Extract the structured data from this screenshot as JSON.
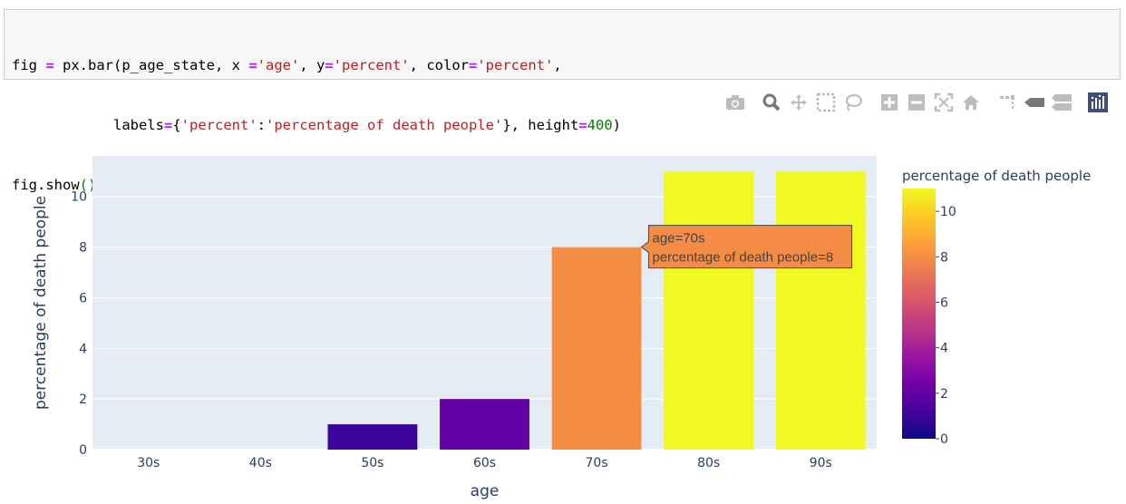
{
  "code": {
    "line1": [
      {
        "t": "fig ",
        "c": ""
      },
      {
        "t": "=",
        "c": "tok-op"
      },
      {
        "t": " px.bar(p_age_state, x ",
        "c": ""
      },
      {
        "t": "=",
        "c": "tok-op"
      },
      {
        "t": "'age'",
        "c": "tok-str"
      },
      {
        "t": ", y",
        "c": ""
      },
      {
        "t": "=",
        "c": "tok-op"
      },
      {
        "t": "'percent'",
        "c": "tok-str"
      },
      {
        "t": ", color",
        "c": ""
      },
      {
        "t": "=",
        "c": "tok-op"
      },
      {
        "t": "'percent'",
        "c": "tok-str"
      },
      {
        "t": ",",
        "c": ""
      }
    ],
    "line2": [
      {
        "t": "            labels",
        "c": ""
      },
      {
        "t": "=",
        "c": "tok-op"
      },
      {
        "t": "{",
        "c": ""
      },
      {
        "t": "'percent'",
        "c": "tok-str"
      },
      {
        "t": ":",
        "c": ""
      },
      {
        "t": "'percentage of death people'",
        "c": "tok-str"
      },
      {
        "t": "}, height",
        "c": ""
      },
      {
        "t": "=",
        "c": "tok-op"
      },
      {
        "t": "400",
        "c": "tok-num"
      },
      {
        "t": ")",
        "c": ""
      }
    ],
    "line3": [
      {
        "t": "fig.show",
        "c": ""
      },
      {
        "t": "()",
        "c": "tok-paren"
      }
    ]
  },
  "modebar": {
    "icons": [
      "camera-icon",
      "zoom-icon",
      "pan-icon",
      "box-select-icon",
      "lasso-select-icon",
      "zoom-in-icon",
      "zoom-out-icon",
      "autoscale-icon",
      "reset-axes-icon",
      "spike-lines-icon",
      "hover-closest-icon",
      "hover-compare-icon",
      "plotly-logo-icon"
    ]
  },
  "chart_data": {
    "type": "bar",
    "categories": [
      "30s",
      "40s",
      "50s",
      "60s",
      "70s",
      "80s",
      "90s"
    ],
    "values": [
      0,
      0,
      1,
      2,
      8,
      11,
      11
    ],
    "xlabel": "age",
    "ylabel": "percentage of death people",
    "ylim": [
      0,
      11.6
    ],
    "yticks": [
      0,
      2,
      4,
      6,
      8,
      10
    ],
    "grid": true,
    "plot_bg": "#e5ecf6",
    "colorscale": [
      "#0d0887",
      "#46039f",
      "#7201a8",
      "#9c179e",
      "#bd3786",
      "#d8576b",
      "#ed7953",
      "#fb9f3a",
      "#fdca26",
      "#f0f921"
    ],
    "colorbar": {
      "title": "percentage of death people",
      "range": [
        0,
        11
      ],
      "ticks": [
        0,
        2,
        4,
        6,
        8,
        10
      ]
    },
    "hover": {
      "category": "70s",
      "lines": [
        "age=70s",
        "percentage of death people=8"
      ],
      "bg": "#f48c45"
    }
  }
}
